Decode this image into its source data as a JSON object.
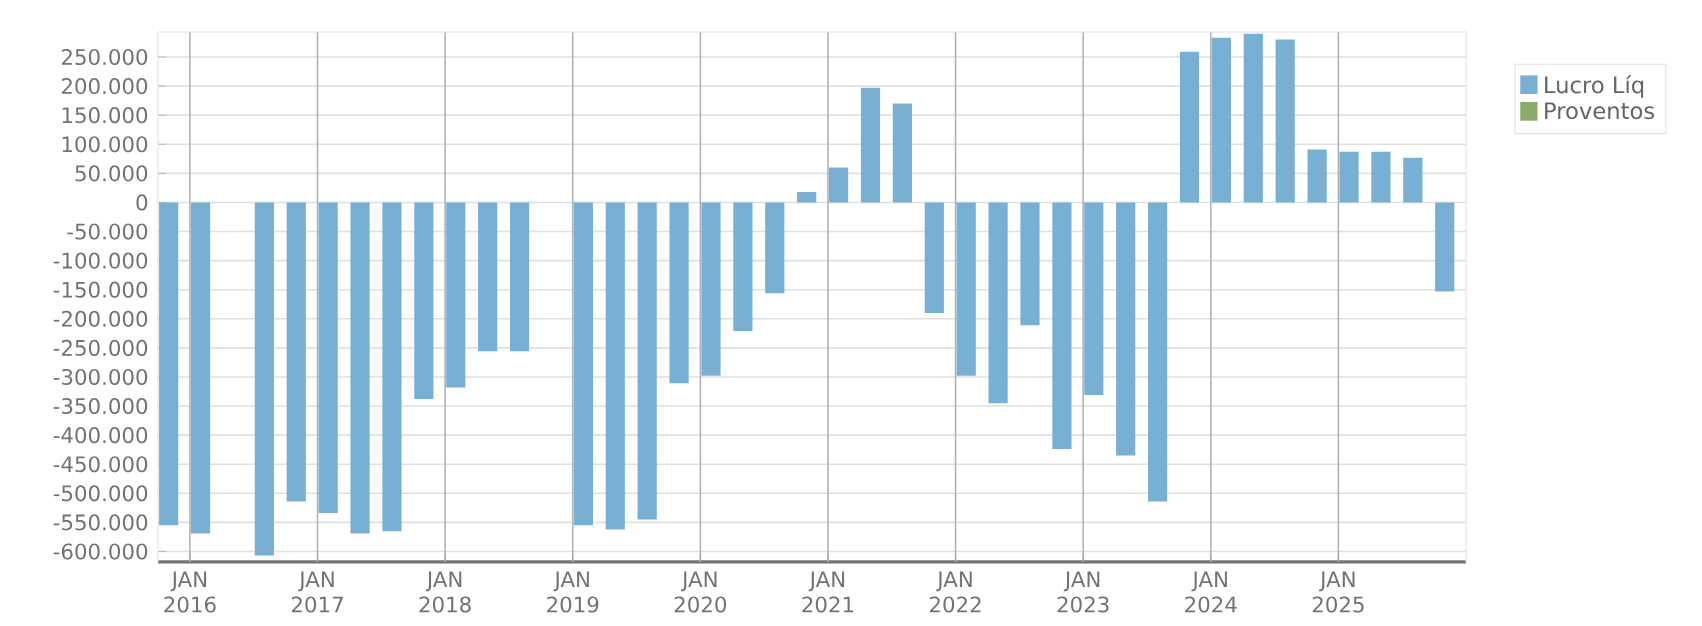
{
  "chart_data": {
    "type": "bar",
    "x": [
      "2015-11",
      "2016-02",
      "2016-05",
      "2016-08",
      "2016-11",
      "2017-02",
      "2017-05",
      "2017-08",
      "2017-11",
      "2018-02",
      "2018-05",
      "2018-08",
      "2018-11",
      "2019-02",
      "2019-05",
      "2019-08",
      "2019-11",
      "2020-02",
      "2020-05",
      "2020-08",
      "2020-11",
      "2021-02",
      "2021-05",
      "2021-08",
      "2021-11",
      "2022-02",
      "2022-05",
      "2022-08",
      "2022-11",
      "2023-02",
      "2023-05",
      "2023-08",
      "2023-11",
      "2024-02",
      "2024-05",
      "2024-08",
      "2024-11",
      "2025-02",
      "2025-05",
      "2025-08",
      "2025-11"
    ],
    "series": [
      {
        "name": "Lucro Líq",
        "color": "#78b0d4",
        "values": [
          -555000,
          -569000,
          null,
          -607000,
          -514000,
          -534000,
          -569000,
          -565000,
          -338000,
          -318000,
          -256000,
          -256000,
          null,
          -555000,
          -562000,
          -545000,
          -311000,
          -298000,
          -221000,
          -156000,
          18000,
          60000,
          197000,
          170000,
          -190000,
          -298000,
          -345000,
          -211000,
          -424000,
          -331000,
          -435000,
          -514000,
          259000,
          283000,
          290000,
          280000,
          91000,
          87000,
          87000,
          77000,
          -153000
        ]
      },
      {
        "name": "Proventos",
        "color": "#8aac6a",
        "values": [
          0,
          0,
          0,
          0,
          0,
          0,
          0,
          0,
          0,
          0,
          0,
          0,
          0,
          0,
          0,
          0,
          0,
          0,
          0,
          0,
          0,
          0,
          0,
          0,
          0,
          0,
          0,
          0,
          0,
          0,
          0,
          0,
          0,
          0,
          0,
          0,
          0,
          0,
          0,
          0,
          0
        ]
      }
    ],
    "xlim": [
      "2015-10",
      "2026-01"
    ],
    "xticks": [
      {
        "value": "2016-01",
        "label": "JAN 2016"
      },
      {
        "value": "2017-01",
        "label": "JAN 2017"
      },
      {
        "value": "2018-01",
        "label": "JAN 2018"
      },
      {
        "value": "2019-01",
        "label": "JAN 2019"
      },
      {
        "value": "2020-01",
        "label": "JAN 2020"
      },
      {
        "value": "2021-01",
        "label": "JAN 2021"
      },
      {
        "value": "2022-01",
        "label": "JAN 2022"
      },
      {
        "value": "2023-01",
        "label": "JAN 2023"
      },
      {
        "value": "2024-01",
        "label": "JAN 2024"
      },
      {
        "value": "2025-01",
        "label": "JAN 2025"
      }
    ],
    "ylim": [
      -618000,
      293000
    ],
    "yticks": [
      {
        "value": -600000,
        "label": "-600.000"
      },
      {
        "value": -550000,
        "label": "-550.000"
      },
      {
        "value": -500000,
        "label": "-500.000"
      },
      {
        "value": -450000,
        "label": "-450.000"
      },
      {
        "value": -400000,
        "label": "-400.000"
      },
      {
        "value": -350000,
        "label": "-350.000"
      },
      {
        "value": -300000,
        "label": "-300.000"
      },
      {
        "value": -250000,
        "label": "-250.000"
      },
      {
        "value": -200000,
        "label": "-200.000"
      },
      {
        "value": -150000,
        "label": "-150.000"
      },
      {
        "value": -100000,
        "label": "-100.000"
      },
      {
        "value": -50000,
        "label": "-50.000"
      },
      0,
      {
        "value": 50000,
        "label": "50.000"
      },
      {
        "value": 100000,
        "label": "100.000"
      },
      {
        "value": 150000,
        "label": "150.000"
      },
      {
        "value": 200000,
        "label": "200.000"
      },
      {
        "value": 250000,
        "label": "250.000"
      }
    ],
    "grid": true,
    "legend": "top right"
  }
}
